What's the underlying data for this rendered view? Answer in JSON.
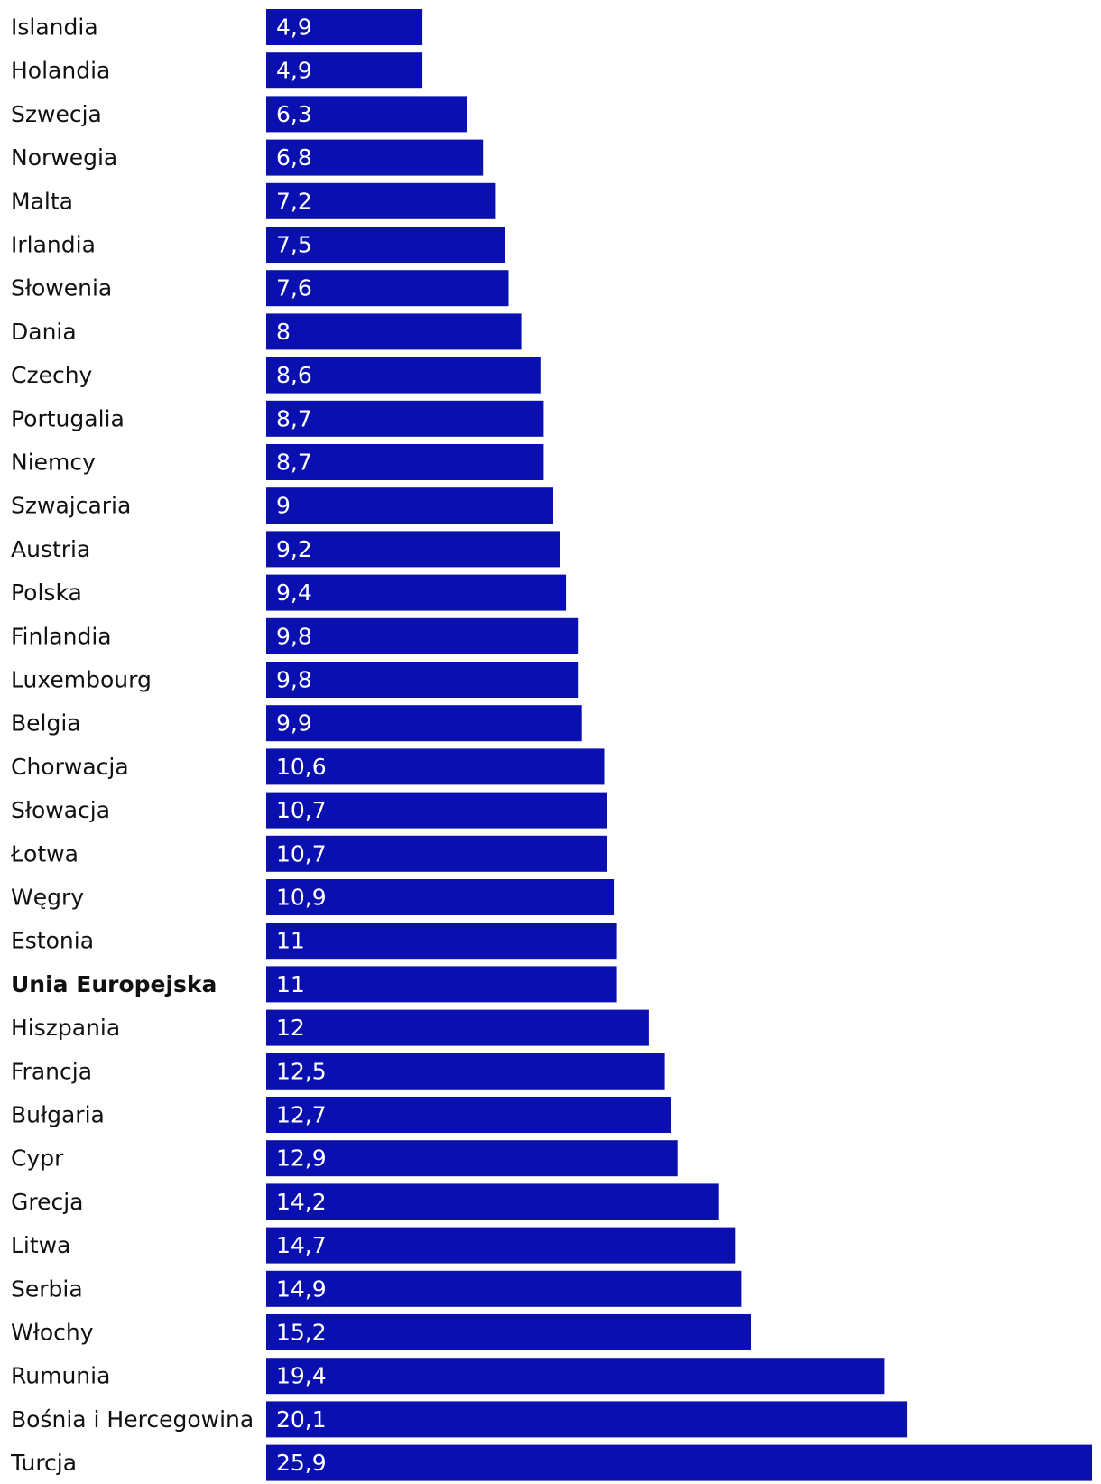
{
  "chart_data": {
    "type": "bar",
    "orientation": "horizontal",
    "bar_color": "#0a10b0",
    "label_color": "#111111",
    "value_label_color": "#ffffff",
    "highlight_category": "Unia Europejska",
    "xlim": [
      0,
      25.9
    ],
    "categories": [
      "Islandia",
      "Holandia",
      "Szwecja",
      "Norwegia",
      "Malta",
      "Irlandia",
      "Słowenia",
      "Dania",
      "Czechy",
      "Portugalia",
      "Niemcy",
      "Szwajcaria",
      "Austria",
      "Polska",
      "Finlandia",
      "Luxembourg",
      "Belgia",
      "Chorwacja",
      "Słowacja",
      "Łotwa",
      "Węgry",
      "Estonia",
      "Unia Europejska",
      "Hiszpania",
      "Francja",
      "Bułgaria",
      "Cypr",
      "Grecja",
      "Litwa",
      "Serbia",
      "Włochy",
      "Rumunia",
      "Bośnia i Hercegowina",
      "Turcja"
    ],
    "values": [
      4.9,
      4.9,
      6.3,
      6.8,
      7.2,
      7.5,
      7.6,
      8,
      8.6,
      8.7,
      8.7,
      9,
      9.2,
      9.4,
      9.8,
      9.8,
      9.9,
      10.6,
      10.7,
      10.7,
      10.9,
      11,
      11,
      12,
      12.5,
      12.7,
      12.9,
      14.2,
      14.7,
      14.9,
      15.2,
      19.4,
      20.1,
      25.9
    ],
    "value_labels": [
      "4,9",
      "4,9",
      "6,3",
      "6,8",
      "7,2",
      "7,5",
      "7,6",
      "8",
      "8,6",
      "8,7",
      "8,7",
      "9",
      "9,2",
      "9,4",
      "9,8",
      "9,8",
      "9,9",
      "10,6",
      "10,7",
      "10,7",
      "10,9",
      "11",
      "11",
      "12",
      "12,5",
      "12,7",
      "12,9",
      "14,2",
      "14,7",
      "14,9",
      "15,2",
      "19,4",
      "20,1",
      "25,9"
    ]
  }
}
